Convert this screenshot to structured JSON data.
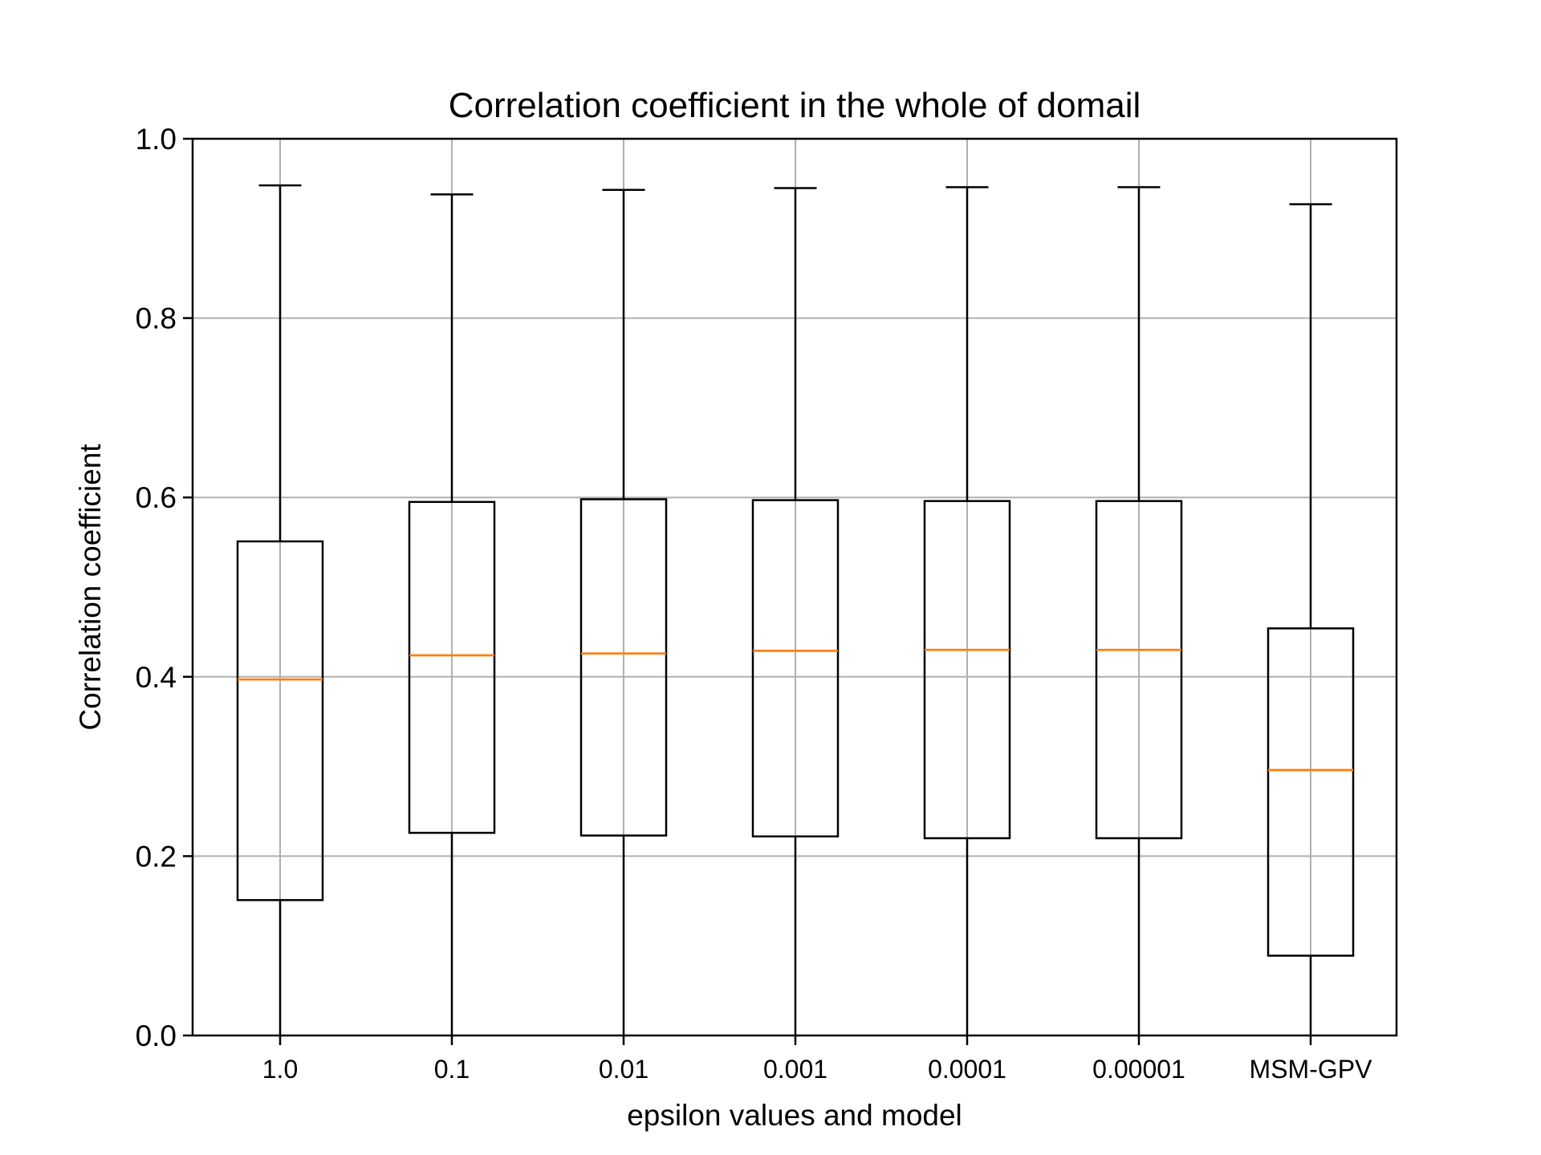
{
  "chart_data": {
    "type": "box",
    "title": "Correlation coefficient in the whole of domail",
    "xlabel": "epsilon values and model",
    "ylabel": "Correlation coefficient",
    "ylim": [
      0.0,
      1.0
    ],
    "yticks": [
      "0.0",
      "0.2",
      "0.4",
      "0.6",
      "0.8",
      "1.0"
    ],
    "grid": true,
    "categories": [
      "1.0",
      "0.1",
      "0.01",
      "0.001",
      "0.0001",
      "0.00001",
      "MSM-GPV"
    ],
    "boxes": [
      {
        "whisker_low": 0.0,
        "q1": 0.151,
        "median": 0.397,
        "q3": 0.551,
        "whisker_high": 0.948
      },
      {
        "whisker_low": 0.0,
        "q1": 0.226,
        "median": 0.424,
        "q3": 0.595,
        "whisker_high": 0.938
      },
      {
        "whisker_low": 0.0,
        "q1": 0.223,
        "median": 0.426,
        "q3": 0.598,
        "whisker_high": 0.943
      },
      {
        "whisker_low": 0.0,
        "q1": 0.222,
        "median": 0.429,
        "q3": 0.597,
        "whisker_high": 0.945
      },
      {
        "whisker_low": 0.0,
        "q1": 0.22,
        "median": 0.43,
        "q3": 0.596,
        "whisker_high": 0.946
      },
      {
        "whisker_low": 0.0,
        "q1": 0.22,
        "median": 0.43,
        "q3": 0.596,
        "whisker_high": 0.946
      },
      {
        "whisker_low": 0.0,
        "q1": 0.089,
        "median": 0.296,
        "q3": 0.454,
        "whisker_high": 0.927
      }
    ],
    "colors": {
      "box": "#000000",
      "median": "#ff7f0e",
      "grid": "#b0b0b0"
    }
  }
}
